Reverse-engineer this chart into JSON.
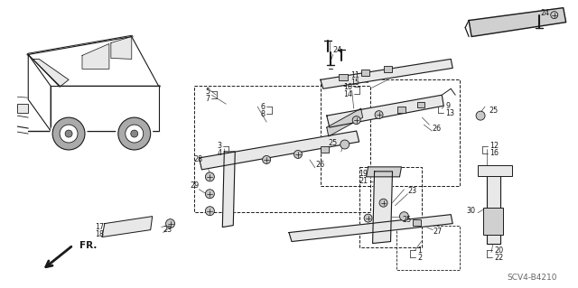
{
  "bg_color": "#ffffff",
  "fig_width": 6.4,
  "fig_height": 3.19,
  "watermark": "SCV4-B4210",
  "line_color": "#1a1a1a",
  "text_color": "#111111",
  "gray_fill": "#c8c8c8",
  "light_gray": "#e8e8e8"
}
